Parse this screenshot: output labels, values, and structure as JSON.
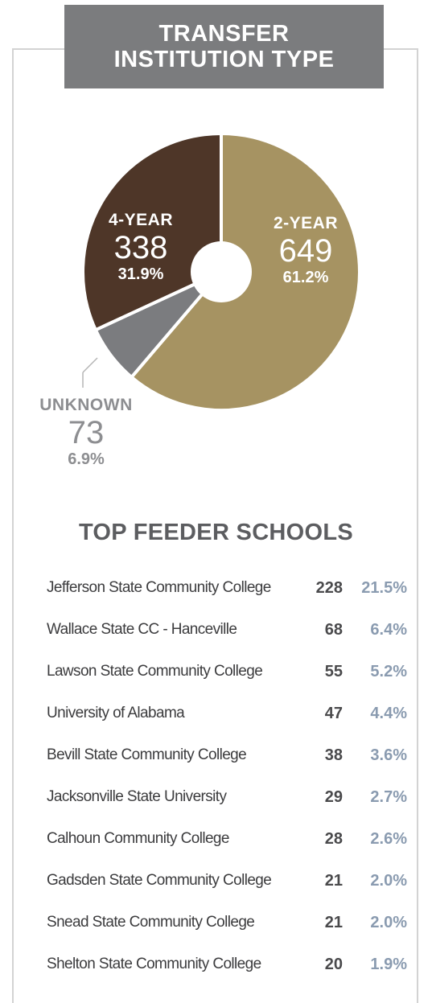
{
  "title": [
    "TRANSFER",
    "INSTITUTION TYPE"
  ],
  "chart_data": {
    "type": "pie",
    "slices": [
      {
        "label": "2-YEAR",
        "value": 649,
        "percent": "61.2%",
        "color": "#a69362"
      },
      {
        "label": "UNKNOWN",
        "value": 73,
        "percent": "6.9%",
        "color": "#7b7c7f"
      },
      {
        "label": "4-YEAR",
        "value": 338,
        "percent": "31.9%",
        "color": "#4e3628"
      }
    ],
    "donut_hole_color": "#ffffff"
  },
  "feeder": {
    "title": "TOP FEEDER SCHOOLS",
    "rows": [
      {
        "school": "Jefferson State Community College",
        "count": "228",
        "percent": "21.5%"
      },
      {
        "school": "Wallace State CC - Hanceville",
        "count": "68",
        "percent": "6.4%"
      },
      {
        "school": "Lawson State Community College",
        "count": "55",
        "percent": "5.2%"
      },
      {
        "school": "University of Alabama",
        "count": "47",
        "percent": "4.4%"
      },
      {
        "school": "Bevill State Community College",
        "count": "38",
        "percent": "3.6%"
      },
      {
        "school": "Jacksonville State University",
        "count": "29",
        "percent": "2.7%"
      },
      {
        "school": "Calhoun Community College",
        "count": "28",
        "percent": "2.6%"
      },
      {
        "school": "Gadsden State Community College",
        "count": "21",
        "percent": "2.0%"
      },
      {
        "school": "Snead State Community College",
        "count": "21",
        "percent": "2.0%"
      },
      {
        "school": "Shelton State Community College",
        "count": "20",
        "percent": "1.9%"
      }
    ]
  }
}
